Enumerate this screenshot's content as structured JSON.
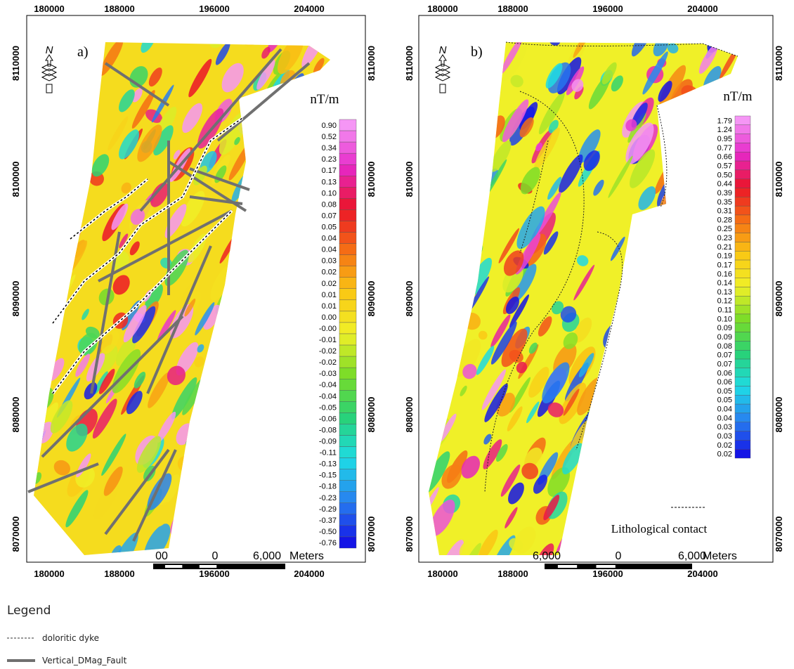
{
  "panel_a": {
    "label": "a)",
    "north": "N",
    "unit": "nT/m",
    "x_labels": [
      "180000",
      "188000",
      "196000",
      "204000"
    ],
    "y_labels": [
      "8110000",
      "8100000",
      "8090000",
      "8080000",
      "8070000"
    ],
    "colorbar": [
      "0.90",
      "0.52",
      "0.34",
      "0.23",
      "0.17",
      "0.13",
      "0.10",
      "0.08",
      "0.07",
      "0.05",
      "0.04",
      "0.04",
      "0.03",
      "0.02",
      "0.02",
      "0.01",
      "0.01",
      "0.00",
      "-0.00",
      "-0.01",
      "-0.02",
      "-0.02",
      "-0.03",
      "-0.04",
      "-0.04",
      "-0.05",
      "-0.06",
      "-0.08",
      "-0.09",
      "-0.11",
      "-0.13",
      "-0.15",
      "-0.18",
      "-0.23",
      "-0.29",
      "-0.37",
      "-0.50",
      "-0.76"
    ],
    "scale_bar": [
      "00",
      "0",
      "6,000",
      "Meters"
    ]
  },
  "panel_b": {
    "label": "b)",
    "north": "N",
    "unit": "nT/m",
    "x_labels": [
      "180000",
      "188000",
      "196000",
      "204000"
    ],
    "y_labels": [
      "8110000",
      "8100000",
      "8090000",
      "8080000",
      "8070000"
    ],
    "colorbar": [
      "1.79",
      "1.24",
      "0.95",
      "0.77",
      "0.66",
      "0.57",
      "0.50",
      "0.44",
      "0.39",
      "0.35",
      "0.31",
      "0.28",
      "0.25",
      "0.23",
      "0.21",
      "0.19",
      "0.17",
      "0.16",
      "0.14",
      "0.13",
      "0.12",
      "0.11",
      "0.10",
      "0.09",
      "0.09",
      "0.08",
      "0.07",
      "0.07",
      "0.06",
      "0.06",
      "0.05",
      "0.05",
      "0.04",
      "0.04",
      "0.03",
      "0.03",
      "0.02",
      "0.02"
    ],
    "scale_bar": [
      "6,000",
      "0",
      "6,000",
      "Meters"
    ],
    "annotation": "Lithological contact"
  },
  "legend": {
    "title": "Legend",
    "items": [
      "doloritic dyke",
      "Vertical_DMag_Fault"
    ]
  }
}
